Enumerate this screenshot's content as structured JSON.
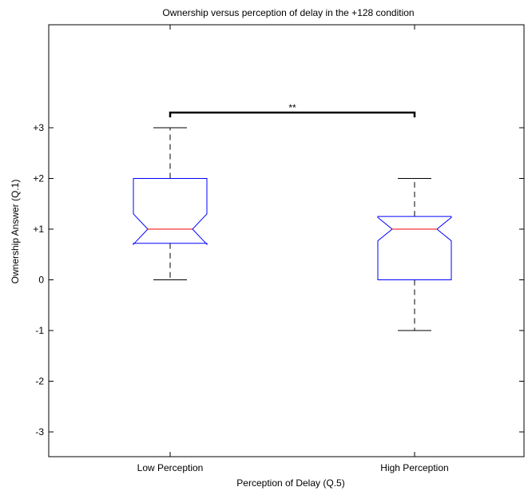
{
  "chart_data": {
    "type": "boxplot",
    "title": "Ownership versus perception of delay in the +128 condition",
    "xlabel": "Perception of Delay (Q.5)",
    "ylabel": "Ownership Answer (Q.1)",
    "ylim": [
      -3.5,
      4.8
    ],
    "y_ticks": [
      {
        "value": 3,
        "label": "+3"
      },
      {
        "value": 2,
        "label": "+2"
      },
      {
        "value": 1,
        "label": "+1"
      },
      {
        "value": 0,
        "label": "0"
      },
      {
        "value": -1,
        "label": "-1"
      },
      {
        "value": -2,
        "label": "-2"
      },
      {
        "value": -3,
        "label": "-3"
      }
    ],
    "grid": false,
    "notched": true,
    "categories": [
      "Low Perception",
      "High Perception"
    ],
    "boxes": [
      {
        "category": "Low Perception",
        "whisker_low": 0,
        "q1": 0.72,
        "median": 1,
        "q3": 2,
        "whisker_high": 3,
        "notch_low": 0.7,
        "notch_high": 1.3
      },
      {
        "category": "High Perception",
        "whisker_low": -1,
        "q1": 0,
        "median": 1,
        "q3": 1.25,
        "whisker_high": 2,
        "notch_low": 0.77,
        "notch_high": 1.23
      }
    ],
    "significance": {
      "between": [
        "Low Perception",
        "High Perception"
      ],
      "y": 3.3,
      "label": "**"
    },
    "colors": {
      "box": "#0000ff",
      "median": "#ff0000",
      "whisker": "#000000",
      "axes": "#000000"
    }
  }
}
